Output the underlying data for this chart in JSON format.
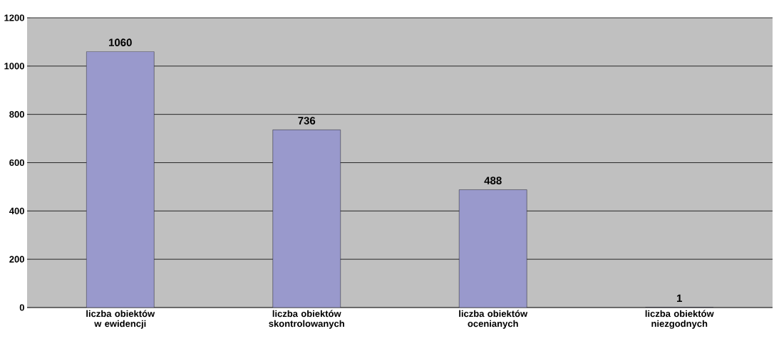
{
  "chart_data": {
    "type": "bar",
    "categories": [
      "liczba obiektów w ewidencji",
      "liczba obiektów skontrolowanych",
      "liczba obiektów ocenianych",
      "liczba obiektów niezgodnych"
    ],
    "values": [
      1060,
      736,
      488,
      1
    ],
    "color": "#9999cc",
    "ylim": [
      0,
      1200
    ],
    "yticks": [
      0,
      200,
      400,
      600,
      800,
      1000,
      1200
    ],
    "grid": "y",
    "data_labels": true
  }
}
